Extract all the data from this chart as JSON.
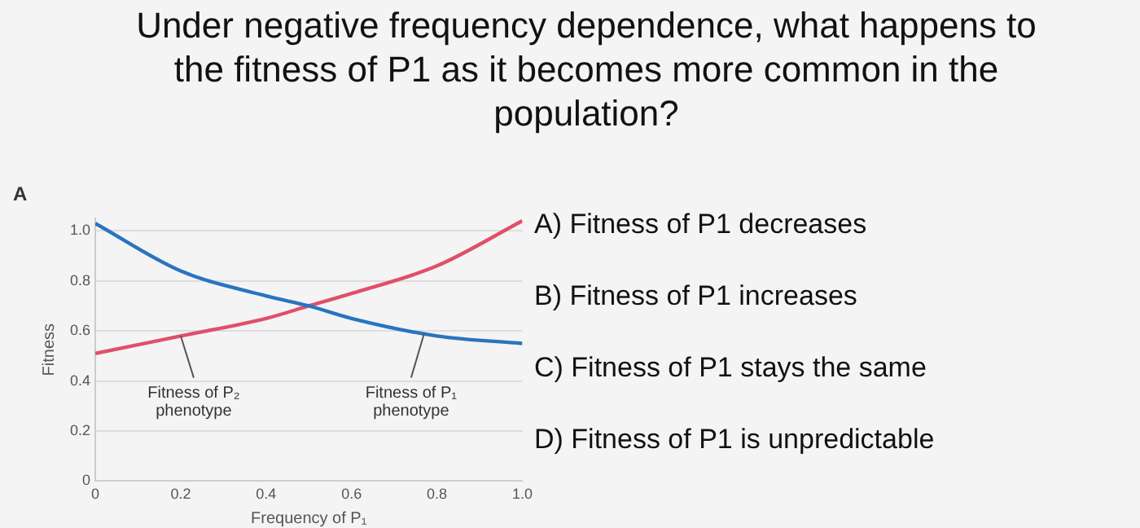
{
  "chart_data": {
    "type": "line",
    "title": "Under negative frequency dependence, what happens to the fitness of P1 as it becomes more common in the population?",
    "xlabel": "Frequency of P₁",
    "ylabel": "Fitness",
    "x": [
      0,
      0.2,
      0.4,
      0.5,
      0.6,
      0.8,
      1.0
    ],
    "series": [
      {
        "color": "#2a74c0",
        "values": [
          1.03,
          0.84,
          0.74,
          0.7,
          0.65,
          0.58,
          0.55
        ]
      },
      {
        "color": "#e0506a",
        "values": [
          0.51,
          0.58,
          0.65,
          0.7,
          0.75,
          0.86,
          1.04
        ]
      }
    ],
    "xlim": [
      0,
      1
    ],
    "xticks": [
      0,
      0.2,
      0.4,
      0.6,
      0.8,
      {
        "value": 1,
        "label": "1.0"
      }
    ],
    "ylim": [
      0,
      1.05
    ],
    "yticks": [
      0,
      0.2,
      0.4,
      0.6,
      0.8,
      {
        "value": 1,
        "label": "1.0"
      }
    ],
    "grid": "y",
    "legend": false,
    "marker": "none",
    "line_style": "solid",
    "annotations": [
      "A",
      {
        "text": "Fitness of P₂ phenotype",
        "x": 0.2,
        "y": 0.58
      },
      {
        "text": "Fitness of P₁ phenotype",
        "x": 0.77,
        "y": 0.59
      },
      "A) Fitness of P1 decreases",
      "B) Fitness of P1 increases",
      "C) Fitness of P1 stays the same",
      "D) Fitness of P1 is unpredictable"
    ]
  }
}
